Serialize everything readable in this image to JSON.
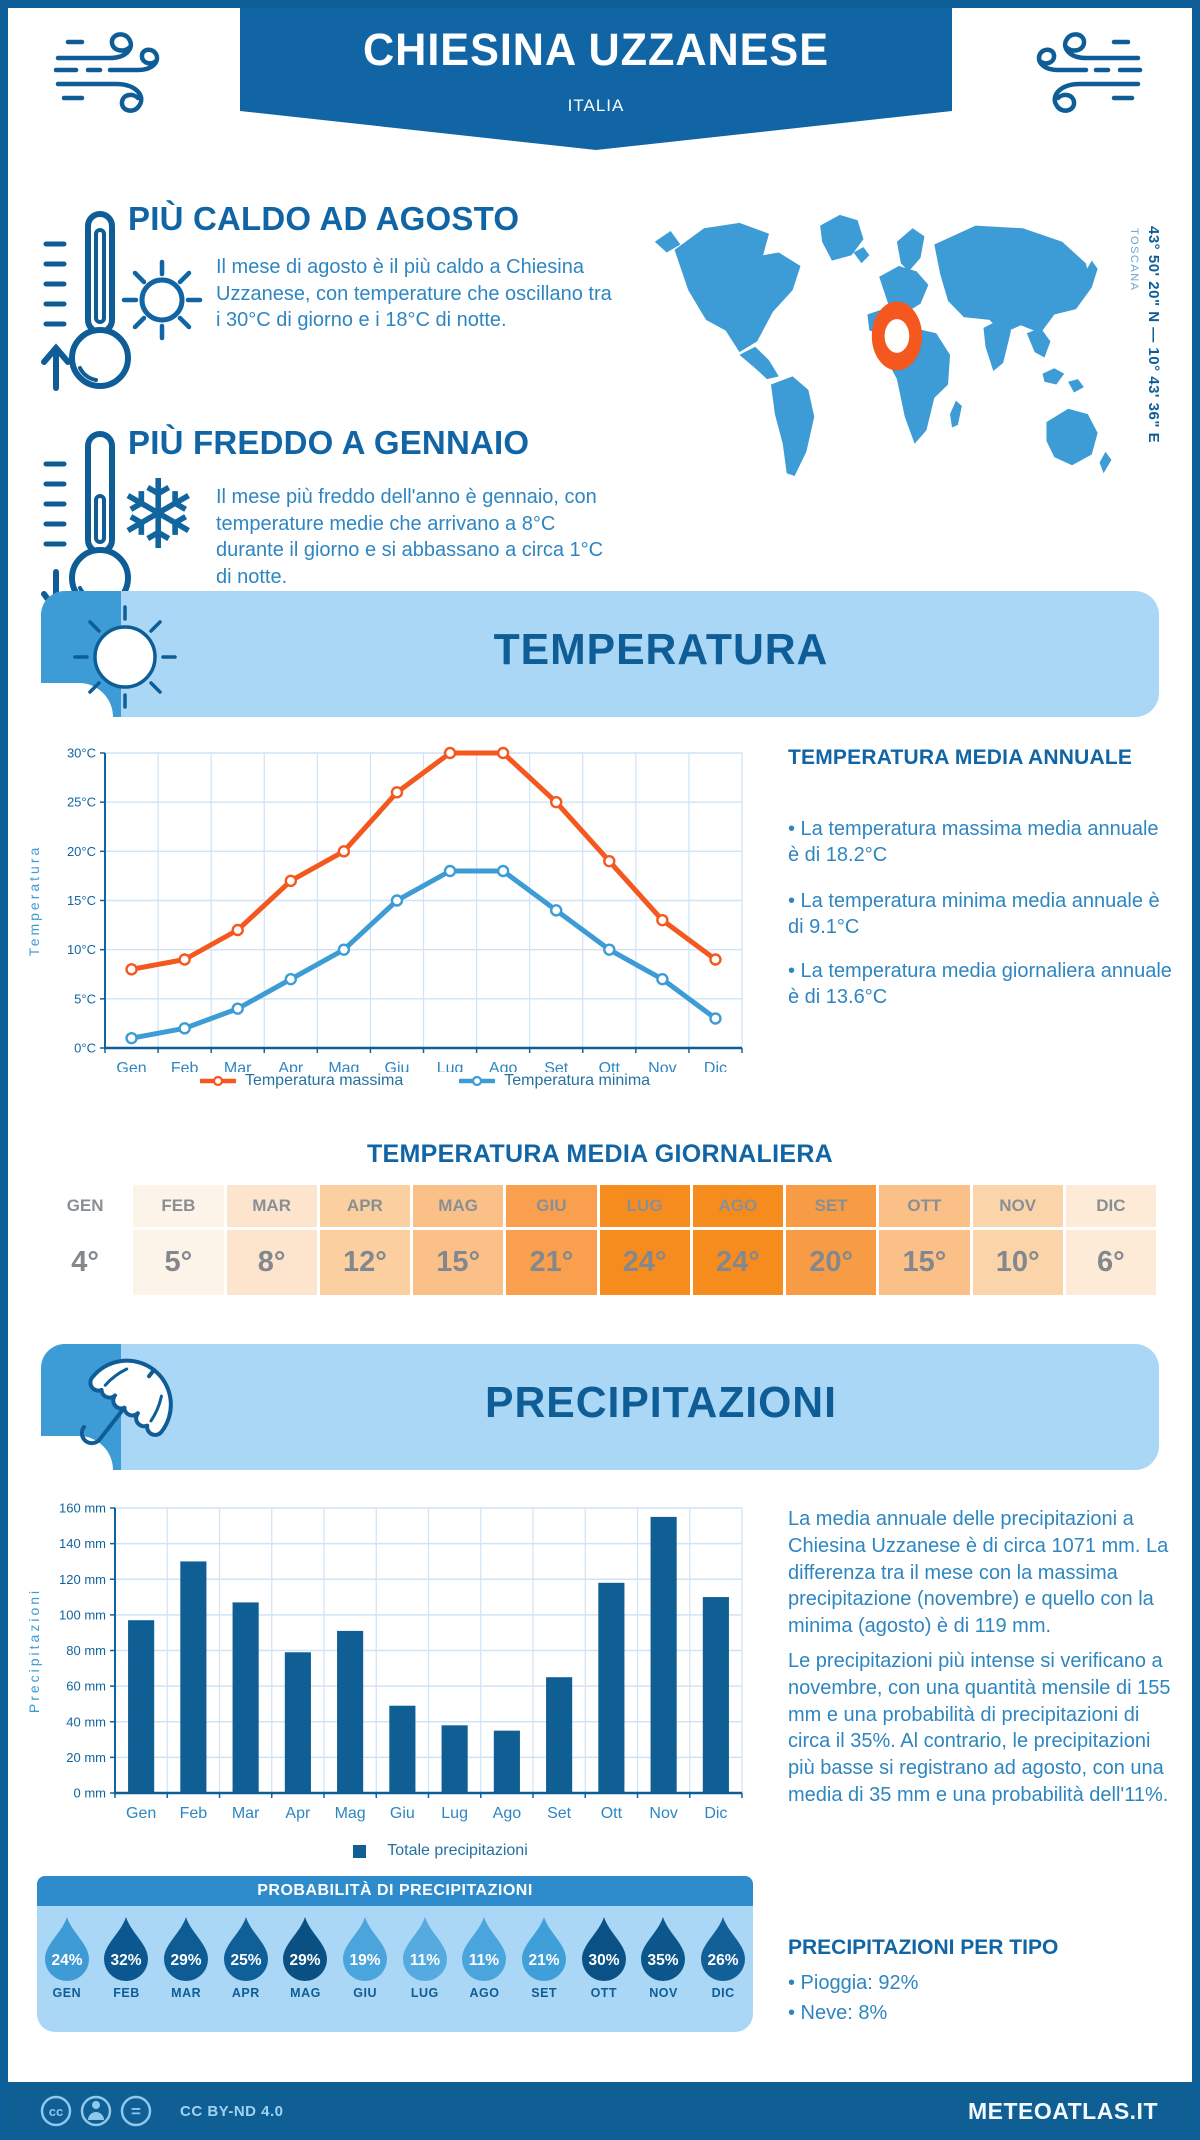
{
  "header": {
    "title": "CHIESINA UZZANESE",
    "subtitle": "ITALIA",
    "banner_color": "#1165a4"
  },
  "highlights": [
    {
      "title": "PIÙ CALDO AD AGOSTO",
      "text": "Il mese di agosto è il più caldo a Chiesina Uzzanese, con temperature che oscillano tra i 30°C di giorno e i 18°C di notte.",
      "icons": [
        "thermometer-high-icon",
        "sun-icon"
      ]
    },
    {
      "title": "PIÙ FREDDO A GENNAIO",
      "text": "Il mese più freddo dell'anno è gennaio, con temperature medie che arrivano a 8°C durante il giorno e si abbassano a circa 1°C di notte.",
      "icons": [
        "thermometer-low-icon",
        "snowflake-icon"
      ]
    }
  ],
  "map": {
    "coordinates": "43° 50' 20\" N — 10° 43' 36\" E",
    "region": "TOSCANA",
    "map_color": "#3d9bd5",
    "marker_color": "#f4581f"
  },
  "sections": {
    "temperature": {
      "title": "TEMPERATURA"
    },
    "precipitation": {
      "title": "PRECIPITAZIONI"
    }
  },
  "chart_data": [
    {
      "type": "line",
      "title": "",
      "categories": [
        "Gen",
        "Feb",
        "Mar",
        "Apr",
        "Mag",
        "Giu",
        "Lug",
        "Ago",
        "Set",
        "Ott",
        "Nov",
        "Dic"
      ],
      "series": [
        {
          "name": "Temperatura massima",
          "color": "#f4581f",
          "values": [
            8,
            9,
            12,
            17,
            20,
            26,
            30,
            30,
            25,
            19,
            13,
            9
          ]
        },
        {
          "name": "Temperatura minima",
          "color": "#3d9bd5",
          "values": [
            1,
            2,
            4,
            7,
            10,
            15,
            18,
            18,
            14,
            10,
            7,
            3
          ]
        }
      ],
      "xlabel": "",
      "ylabel": "Temperatura",
      "ylim": [
        0,
        30
      ],
      "ytick_step": 5,
      "yunit": "°C",
      "grid": true,
      "legend_position": "bottom"
    },
    {
      "type": "bar",
      "title": "",
      "categories": [
        "Gen",
        "Feb",
        "Mar",
        "Apr",
        "Mag",
        "Giu",
        "Lug",
        "Ago",
        "Set",
        "Ott",
        "Nov",
        "Dic"
      ],
      "series": [
        {
          "name": "Totale precipitazioni",
          "color": "#0f5e94",
          "values": [
            97,
            130,
            107,
            79,
            91,
            49,
            38,
            35,
            65,
            118,
            155,
            110
          ]
        }
      ],
      "xlabel": "",
      "ylabel": "Precipitazioni",
      "ylim": [
        0,
        160
      ],
      "ytick_step": 20,
      "yunit": " mm",
      "grid": true,
      "legend_position": "bottom"
    }
  ],
  "temperature_summary": {
    "title": "TEMPERATURA MEDIA ANNUALE",
    "bullets": [
      "• La temperatura massima media annuale è di 18.2°C",
      "• La temperatura minima media annuale è di 9.1°C",
      "• La temperatura media giornaliera annuale è di 13.6°C"
    ]
  },
  "daily_table": {
    "title": "TEMPERATURA MEDIA GIORNALIERA",
    "months": [
      "GEN",
      "FEB",
      "MAR",
      "APR",
      "MAG",
      "GIU",
      "LUG",
      "AGO",
      "SET",
      "OTT",
      "NOV",
      "DIC"
    ],
    "values": [
      "4°",
      "5°",
      "8°",
      "12°",
      "15°",
      "21°",
      "24°",
      "24°",
      "20°",
      "15°",
      "10°",
      "6°"
    ],
    "cell_colors": [
      "#ffffff",
      "#fdf4e9",
      "#fce4cd",
      "#fbcf9f",
      "#fac088",
      "#f99f4e",
      "#f78c1e",
      "#f78c1e",
      "#f89b45",
      "#fac088",
      "#fbd4a9",
      "#fdebd7"
    ]
  },
  "precip_text": {
    "paragraphs": [
      "La media annuale delle precipitazioni a Chiesina Uzzanese è di circa 1071 mm. La differenza tra il mese con la massima precipitazione (novembre) e quello con la minima (agosto) è di 119 mm.",
      "Le precipitazioni più intense si verificano a novembre, con una quantità mensile di 155 mm e una probabilità di precipitazioni di circa il 35%. Al contrario, le precipitazioni più basse si registrano ad agosto, con una media di 35 mm e una probabilità dell'11%."
    ]
  },
  "probability": {
    "title": "PROBABILITÀ DI PRECIPITAZIONI",
    "months": [
      "GEN",
      "FEB",
      "MAR",
      "APR",
      "MAG",
      "GIU",
      "LUG",
      "AGO",
      "SET",
      "OTT",
      "NOV",
      "DIC"
    ],
    "values": [
      "24%",
      "32%",
      "29%",
      "25%",
      "29%",
      "19%",
      "11%",
      "11%",
      "21%",
      "30%",
      "35%",
      "26%"
    ],
    "drop_colors": [
      "#3e9bd5",
      "#0c578f",
      "#0e5c94",
      "#0f6098",
      "#0a5082",
      "#4ba5dd",
      "#55abe0",
      "#4ba5dd",
      "#3f9fd9",
      "#0a5285",
      "#0c568b",
      "#135f97"
    ]
  },
  "precip_type": {
    "title": "PRECIPITAZIONI PER TIPO",
    "bullets": [
      "• Pioggia: 92%",
      "• Neve: 8%"
    ]
  },
  "footer": {
    "license": "CC BY-ND 4.0",
    "site": "METEOATLAS.IT"
  }
}
